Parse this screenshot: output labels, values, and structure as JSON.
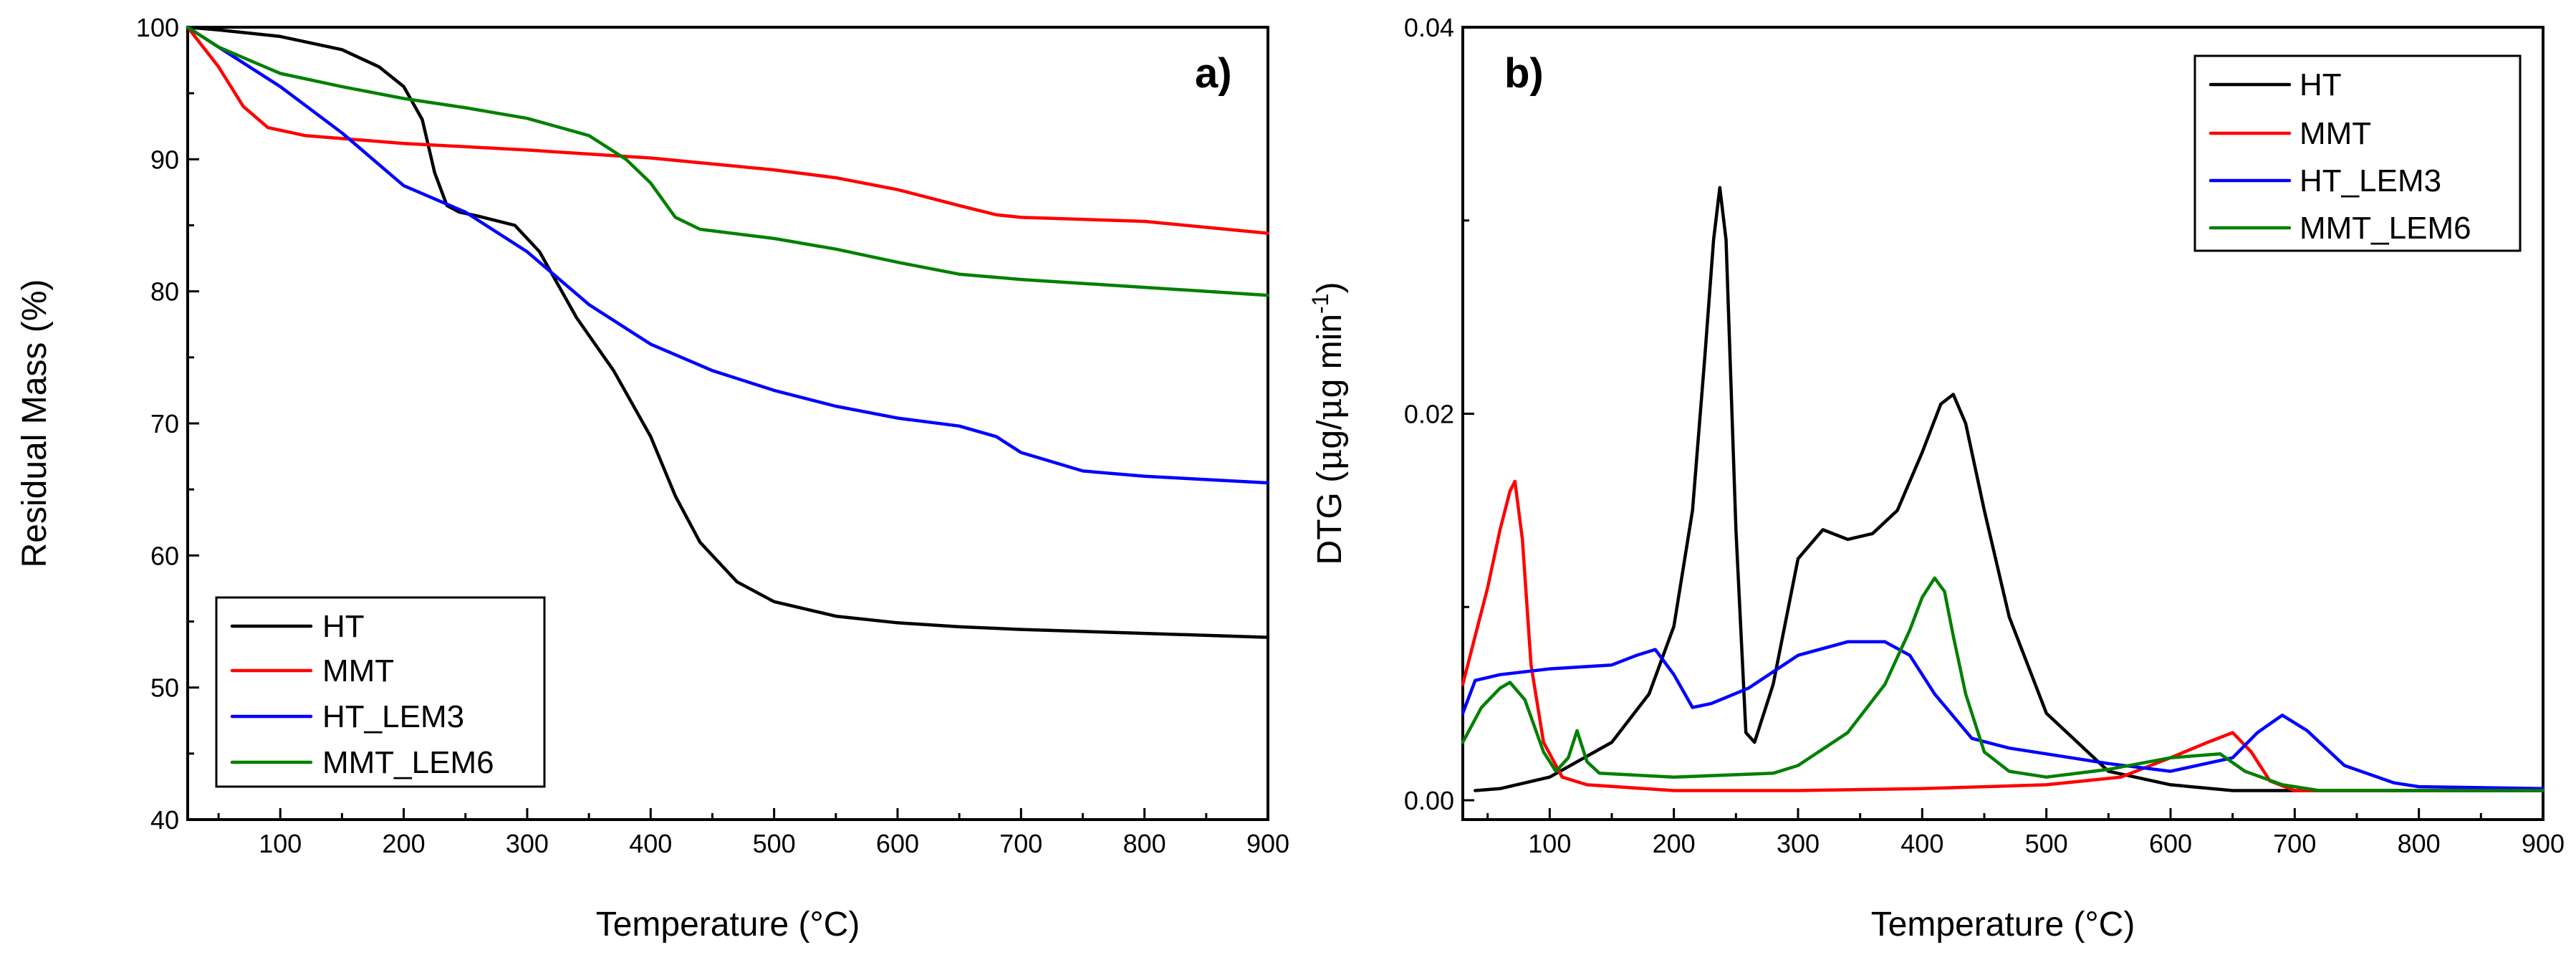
{
  "chart_data": [
    {
      "type": "line",
      "panel_label": "a)",
      "xlabel": "Temperature (°C)",
      "ylabel": "Residual Mass (%)",
      "xlim": [
        25,
        900
      ],
      "ylim": [
        40,
        100
      ],
      "xticks": [
        100,
        200,
        300,
        400,
        500,
        600,
        700,
        800,
        900
      ],
      "yticks": [
        40,
        50,
        60,
        70,
        80,
        90,
        100
      ],
      "xtick_labels": [
        "100",
        "200",
        "300",
        "400",
        "500",
        "600",
        "700",
        "800",
        "900"
      ],
      "ytick_labels": [
        "40",
        "50",
        "60",
        "70",
        "80",
        "90",
        "100"
      ],
      "legend_position": "bottom-left",
      "series": [
        {
          "name": "HT",
          "color": "#000000",
          "x": [
            25,
            50,
            100,
            150,
            180,
            200,
            215,
            225,
            235,
            245,
            260,
            290,
            310,
            340,
            370,
            400,
            420,
            440,
            470,
            500,
            550,
            600,
            650,
            700,
            800,
            900
          ],
          "y": [
            100,
            99.8,
            99.3,
            98.3,
            97,
            95.5,
            93,
            89,
            86.5,
            86,
            85.7,
            85,
            83,
            78,
            74,
            69,
            64.5,
            61,
            58,
            56.5,
            55.4,
            54.9,
            54.6,
            54.4,
            54.1,
            53.8
          ]
        },
        {
          "name": "MMT",
          "color": "#ff0000",
          "x": [
            25,
            50,
            70,
            90,
            120,
            200,
            300,
            400,
            500,
            550,
            600,
            650,
            680,
            700,
            800,
            900
          ],
          "y": [
            100,
            97,
            94,
            92.4,
            91.8,
            91.2,
            90.7,
            90.1,
            89.2,
            88.6,
            87.7,
            86.5,
            85.8,
            85.6,
            85.3,
            84.4
          ]
        },
        {
          "name": "HT_LEM3",
          "color": "#0000ff",
          "x": [
            25,
            50,
            100,
            150,
            200,
            250,
            300,
            350,
            400,
            450,
            500,
            550,
            600,
            650,
            680,
            700,
            750,
            800,
            900
          ],
          "y": [
            100,
            98.5,
            95.5,
            92,
            88,
            86,
            83,
            79,
            76,
            74,
            72.5,
            71.3,
            70.4,
            69.8,
            69,
            67.8,
            66.4,
            66,
            65.5
          ]
        },
        {
          "name": "MMT_LEM6",
          "color": "#008000",
          "x": [
            25,
            50,
            100,
            150,
            200,
            250,
            300,
            350,
            380,
            400,
            420,
            440,
            500,
            550,
            600,
            650,
            700,
            800,
            900
          ],
          "y": [
            100,
            98.5,
            96.5,
            95.5,
            94.6,
            93.9,
            93.1,
            91.8,
            90,
            88.2,
            85.6,
            84.7,
            84,
            83.2,
            82.2,
            81.3,
            80.9,
            80.3,
            79.7
          ]
        }
      ]
    },
    {
      "type": "line",
      "panel_label": "b)",
      "xlabel": "Temperature (°C)",
      "ylabel_main": "DTG (",
      "ylabel_mu1": "μ",
      "ylabel_mid": "g/",
      "ylabel_mu2": "μ",
      "ylabel_unit": "g min",
      "ylabel_sup": "-1",
      "ylabel_close": ")",
      "xlim": [
        30,
        900
      ],
      "ylim": [
        -0.001,
        0.04
      ],
      "xticks": [
        100,
        200,
        300,
        400,
        500,
        600,
        700,
        800,
        900
      ],
      "yticks": [
        0.0,
        0.02,
        0.04
      ],
      "xtick_labels": [
        "100",
        "200",
        "300",
        "400",
        "500",
        "600",
        "700",
        "800",
        "900"
      ],
      "ytick_labels": [
        "0.00",
        "0.02",
        "0.04"
      ],
      "legend_position": "top-right",
      "series": [
        {
          "name": "HT",
          "color": "#000000",
          "x": [
            40,
            60,
            100,
            150,
            180,
            200,
            215,
            225,
            232,
            237,
            242,
            250,
            258,
            265,
            280,
            300,
            320,
            340,
            360,
            380,
            400,
            415,
            425,
            435,
            450,
            470,
            500,
            550,
            600,
            650,
            700,
            800,
            900
          ],
          "y": [
            0.0005,
            0.0006,
            0.0012,
            0.003,
            0.0055,
            0.009,
            0.015,
            0.023,
            0.029,
            0.0317,
            0.029,
            0.014,
            0.0035,
            0.003,
            0.006,
            0.0125,
            0.014,
            0.0135,
            0.0138,
            0.015,
            0.018,
            0.0205,
            0.021,
            0.0195,
            0.015,
            0.0095,
            0.0045,
            0.0015,
            0.0008,
            0.0005,
            0.0005,
            0.0005,
            0.0005
          ]
        },
        {
          "name": "MMT",
          "color": "#ff0000",
          "x": [
            30,
            40,
            50,
            60,
            68,
            72,
            78,
            85,
            95,
            110,
            130,
            200,
            300,
            400,
            500,
            560,
            600,
            630,
            650,
            665,
            680,
            700,
            800,
            900
          ],
          "y": [
            0.006,
            0.0085,
            0.011,
            0.014,
            0.016,
            0.0165,
            0.0135,
            0.007,
            0.003,
            0.0012,
            0.0008,
            0.0005,
            0.0005,
            0.0006,
            0.0008,
            0.0012,
            0.0022,
            0.003,
            0.0035,
            0.0025,
            0.001,
            0.0005,
            0.0005,
            0.0005
          ]
        },
        {
          "name": "HT_LEM3",
          "color": "#0000ff",
          "x": [
            30,
            40,
            60,
            100,
            150,
            170,
            185,
            200,
            215,
            230,
            260,
            300,
            340,
            370,
            390,
            410,
            440,
            470,
            500,
            550,
            600,
            650,
            670,
            690,
            710,
            740,
            780,
            800,
            900
          ],
          "y": [
            0.0045,
            0.0062,
            0.0065,
            0.0068,
            0.007,
            0.0075,
            0.0078,
            0.0065,
            0.0048,
            0.005,
            0.0058,
            0.0075,
            0.0082,
            0.0082,
            0.0075,
            0.0055,
            0.0032,
            0.0027,
            0.0024,
            0.0019,
            0.0015,
            0.0022,
            0.0035,
            0.0044,
            0.0036,
            0.0018,
            0.0009,
            0.0007,
            0.0006
          ]
        },
        {
          "name": "MMT_LEM6",
          "color": "#008000",
          "x": [
            30,
            45,
            60,
            68,
            80,
            95,
            105,
            115,
            122,
            130,
            140,
            200,
            280,
            300,
            340,
            370,
            390,
            400,
            410,
            418,
            425,
            435,
            450,
            470,
            500,
            550,
            600,
            640,
            660,
            690,
            720,
            800,
            900
          ],
          "y": [
            0.003,
            0.0048,
            0.0058,
            0.0061,
            0.0052,
            0.0025,
            0.0015,
            0.0022,
            0.0036,
            0.002,
            0.0014,
            0.0012,
            0.0014,
            0.0018,
            0.0035,
            0.006,
            0.0088,
            0.0105,
            0.0115,
            0.0108,
            0.0085,
            0.0055,
            0.0025,
            0.0015,
            0.0012,
            0.0016,
            0.0022,
            0.0024,
            0.0015,
            0.0008,
            0.0005,
            0.0005,
            0.0005
          ]
        }
      ]
    }
  ]
}
